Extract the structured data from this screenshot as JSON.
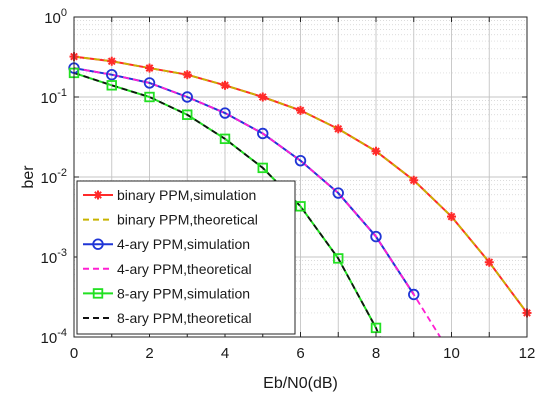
{
  "chart_data": {
    "type": "line",
    "title": "",
    "xlabel": "Eb/N0(dB)",
    "ylabel": "ber",
    "xlim": [
      0,
      12
    ],
    "ylim": [
      0.0001,
      1
    ],
    "yscale": "log",
    "grid": true,
    "minor_grid": true,
    "legend_position": "bottom-left",
    "x_ticks": [
      "0",
      "2",
      "4",
      "6",
      "8",
      "10",
      "12"
    ],
    "y_ticks": [
      {
        "base": "10",
        "exp": "0"
      },
      {
        "base": "10",
        "exp": "-1"
      },
      {
        "base": "10",
        "exp": "-2"
      },
      {
        "base": "10",
        "exp": "-3"
      },
      {
        "base": "10",
        "exp": "-4"
      }
    ],
    "series": [
      {
        "name": "binary PPM,simulation",
        "color": "#ff2a2a",
        "style": "solid",
        "marker": "asterisk",
        "x": [
          0,
          1,
          2,
          3,
          4,
          5,
          6,
          7,
          8,
          9,
          10,
          11,
          12
        ],
        "y": [
          0.32,
          0.28,
          0.23,
          0.19,
          0.14,
          0.1,
          0.068,
          0.04,
          0.021,
          0.0091,
          0.0032,
          0.00086,
          0.0002
        ]
      },
      {
        "name": "binary PPM,theoretical",
        "color": "#c8b400",
        "style": "dashed",
        "marker": "none",
        "x": [
          0,
          1,
          2,
          3,
          4,
          5,
          6,
          7,
          8,
          9,
          10,
          11,
          12
        ],
        "y": [
          0.32,
          0.28,
          0.23,
          0.19,
          0.14,
          0.1,
          0.068,
          0.04,
          0.021,
          0.0091,
          0.0032,
          0.00086,
          0.0002
        ]
      },
      {
        "name": "4-ary PPM,simulation",
        "color": "#1f35d6",
        "style": "solid",
        "marker": "circle",
        "x": [
          0,
          1,
          2,
          3,
          4,
          5,
          6,
          7,
          8,
          9
        ],
        "y": [
          0.23,
          0.19,
          0.15,
          0.1,
          0.063,
          0.035,
          0.016,
          0.0063,
          0.0018,
          0.00034
        ]
      },
      {
        "name": "4-ary PPM,theoretical",
        "color": "#ff1fd2",
        "style": "dashed",
        "marker": "none",
        "x": [
          0,
          1,
          2,
          3,
          4,
          5,
          6,
          7,
          8,
          9,
          9.7
        ],
        "y": [
          0.23,
          0.19,
          0.15,
          0.1,
          0.063,
          0.035,
          0.016,
          0.0063,
          0.0018,
          0.00034,
          0.0001
        ]
      },
      {
        "name": "8-ary PPM,simulation",
        "color": "#22e022",
        "style": "solid",
        "marker": "square",
        "x": [
          0,
          1,
          2,
          3,
          4,
          5,
          6,
          7,
          8
        ],
        "y": [
          0.2,
          0.14,
          0.1,
          0.06,
          0.03,
          0.013,
          0.0043,
          0.00096,
          0.00013
        ]
      },
      {
        "name": "8-ary PPM,theoretical",
        "color": "#111111",
        "style": "dashed",
        "marker": "none",
        "x": [
          0,
          1,
          2,
          3,
          4,
          5,
          6,
          7,
          8,
          8.1
        ],
        "y": [
          0.2,
          0.14,
          0.1,
          0.06,
          0.03,
          0.013,
          0.0043,
          0.00096,
          0.00013,
          0.0001
        ]
      }
    ]
  }
}
